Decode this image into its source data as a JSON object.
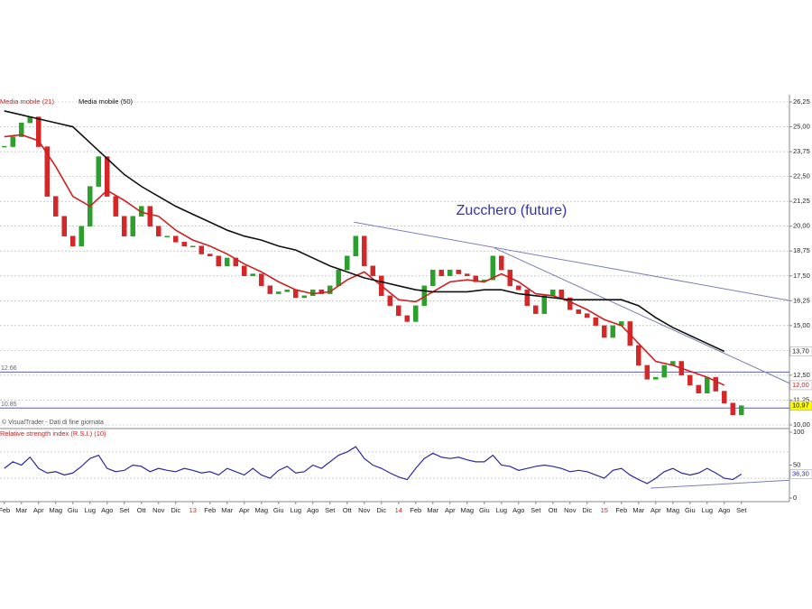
{
  "chart_data": [
    {
      "type": "candlestick",
      "title": "Zucchero (future)",
      "source": "© VisualTrader - Dati di fine giornata",
      "xlim": [
        -0.25,
        45.8
      ],
      "ylim": [
        10,
        26.25
      ],
      "yticks": [
        {
          "value": 10,
          "label": "10,00"
        },
        {
          "value": 11.25,
          "label": "11,25"
        },
        {
          "value": 12.5,
          "label": "12,50"
        },
        {
          "value": 13.75,
          "label": "13,75"
        },
        {
          "value": 15,
          "label": "15,00"
        },
        {
          "value": 16.25,
          "label": "16,25"
        },
        {
          "value": 17.5,
          "label": "17,50"
        },
        {
          "value": 18.75,
          "label": "18,75"
        },
        {
          "value": 20,
          "label": "20,00"
        },
        {
          "value": 21.25,
          "label": "21,25"
        },
        {
          "value": 22.5,
          "label": "22,50"
        },
        {
          "value": 23.75,
          "label": "23,75"
        },
        {
          "value": 25,
          "label": "25,00"
        },
        {
          "value": 26.25,
          "label": "26,25"
        }
      ],
      "grid": true,
      "x": [
        0,
        0.5,
        1,
        1.5,
        2,
        2.5,
        3,
        3.5,
        4,
        4.5,
        5,
        5.5,
        6,
        6.5,
        7,
        7.5,
        8,
        8.5,
        9,
        9.5,
        10,
        10.5,
        11,
        11.5,
        12,
        12.5,
        13,
        13.5,
        14,
        14.5,
        15,
        15.5,
        16,
        16.5,
        17,
        17.5,
        18,
        18.5,
        19,
        19.5,
        20,
        20.5,
        21,
        21.5,
        22,
        22.5,
        23,
        23.5,
        24,
        24.5,
        25,
        25.5,
        26,
        26.5,
        27,
        27.5,
        28,
        28.5,
        29,
        29.5,
        30,
        30.5,
        31,
        31.5,
        32,
        32.5,
        33,
        33.5,
        34,
        34.5,
        35,
        35.5,
        36,
        36.5,
        37,
        37.5,
        38,
        38.5,
        39,
        39.5,
        40,
        40.5,
        41,
        41.5,
        42,
        42.5,
        43
      ],
      "values": [
        24.0,
        24.5,
        25.2,
        25.5,
        24.0,
        21.5,
        20.5,
        19.5,
        19.0,
        20.0,
        22.0,
        23.5,
        21.5,
        20.5,
        19.5,
        20.5,
        21.0,
        20.0,
        19.5,
        19.5,
        19.2,
        19.0,
        19.0,
        18.6,
        18.5,
        18.0,
        18.4,
        18.0,
        17.5,
        17.6,
        17.0,
        16.6,
        16.7,
        16.8,
        16.4,
        16.5,
        16.8,
        16.6,
        17.0,
        17.8,
        18.5,
        19.5,
        18.0,
        17.5,
        16.5,
        16.0,
        15.5,
        15.2,
        16.0,
        17.0,
        17.8,
        17.5,
        17.8,
        17.6,
        17.5,
        17.2,
        17.3,
        18.5,
        17.8,
        17.0,
        16.8,
        16.0,
        15.6,
        16.5,
        16.8,
        16.4,
        15.8,
        15.6,
        15.4,
        15.0,
        14.4,
        15.0,
        15.2,
        14.0,
        13.0,
        12.3,
        12.4,
        13.0,
        13.2,
        12.5,
        12.0,
        11.6,
        12.4,
        11.7,
        11.1,
        10.5,
        10.97
      ],
      "up_color": "#2ca02c",
      "down_color": "#d62728",
      "last_label": "10,97",
      "last_label_bg": "#ffff00",
      "series": [
        {
          "name": "Media mobile (21)",
          "color": "#cc2222",
          "last_label": "12,00",
          "x": [
            0,
            1,
            2,
            3,
            4,
            5,
            6,
            7,
            8,
            9,
            10,
            11,
            12,
            13,
            14,
            15,
            16,
            17,
            18,
            19,
            20,
            21,
            22,
            23,
            24,
            25,
            26,
            27,
            28,
            29,
            30,
            31,
            32,
            33,
            34,
            35,
            36,
            37,
            38,
            39,
            40,
            41,
            42
          ],
          "values": [
            24.5,
            24.6,
            24.3,
            23.0,
            21.5,
            21.0,
            21.8,
            21.3,
            20.7,
            20.5,
            19.8,
            19.3,
            19.0,
            18.6,
            18.1,
            17.7,
            17.2,
            16.8,
            16.6,
            16.7,
            17.3,
            17.7,
            17.0,
            16.3,
            16.2,
            16.7,
            17.2,
            17.3,
            17.2,
            17.6,
            17.2,
            16.6,
            16.5,
            16.2,
            15.8,
            15.3,
            15.0,
            14.1,
            13.2,
            13.0,
            12.7,
            12.4,
            12.0
          ]
        },
        {
          "name": "Media mobile (50)",
          "color": "#111111",
          "last_label": "13,70",
          "x": [
            0,
            1,
            2,
            3,
            4,
            5,
            6,
            7,
            8,
            9,
            10,
            11,
            12,
            13,
            14,
            15,
            16,
            17,
            18,
            19,
            20,
            21,
            22,
            23,
            24,
            25,
            26,
            27,
            28,
            29,
            30,
            31,
            32,
            33,
            34,
            35,
            36,
            37,
            38,
            39,
            40,
            41,
            42
          ],
          "values": [
            25.8,
            25.6,
            25.4,
            25.2,
            25.0,
            24.2,
            23.4,
            22.6,
            22.0,
            21.5,
            21.0,
            20.6,
            20.2,
            19.8,
            19.5,
            19.3,
            19.0,
            18.8,
            18.4,
            18.0,
            17.7,
            17.4,
            17.2,
            17.0,
            16.8,
            16.7,
            16.7,
            16.7,
            16.8,
            16.8,
            16.6,
            16.5,
            16.4,
            16.3,
            16.3,
            16.3,
            16.3,
            16.0,
            15.4,
            14.9,
            14.5,
            14.1,
            13.7
          ]
        }
      ],
      "levels": [
        12.66,
        10.85
      ],
      "level_color": "#5a5fa8",
      "trendlines": [
        {
          "x": [
            20.4,
            45.8
          ],
          "y": [
            20.2,
            16.26
          ]
        },
        {
          "x": [
            28.6,
            45.8
          ],
          "y": [
            18.9,
            12.1
          ]
        }
      ],
      "trend_color": "#7b7fb8"
    },
    {
      "type": "line",
      "title": "Relative strength index (R.S.I.) (10)",
      "xlim": [
        -0.25,
        45.8
      ],
      "ylim": [
        0,
        100
      ],
      "yticks": [
        0,
        50,
        100
      ],
      "levels": [
        70,
        30
      ],
      "xticks": [
        {
          "value": 0,
          "label": "Feb"
        },
        {
          "value": 1,
          "label": "Mar"
        },
        {
          "value": 2,
          "label": "Apr"
        },
        {
          "value": 3,
          "label": "Mag"
        },
        {
          "value": 4,
          "label": "Giu"
        },
        {
          "value": 5,
          "label": "Lug"
        },
        {
          "value": 6,
          "label": "Ago"
        },
        {
          "value": 7,
          "label": "Set"
        },
        {
          "value": 8,
          "label": "Ott"
        },
        {
          "value": 9,
          "label": "Nov"
        },
        {
          "value": 10,
          "label": "Dic"
        },
        {
          "value": 11,
          "label": "13"
        },
        {
          "value": 12,
          "label": "Feb"
        },
        {
          "value": 13,
          "label": "Mar"
        },
        {
          "value": 14,
          "label": "Apr"
        },
        {
          "value": 15,
          "label": "Mag"
        },
        {
          "value": 16,
          "label": "Giu"
        },
        {
          "value": 17,
          "label": "Lug"
        },
        {
          "value": 18,
          "label": "Ago"
        },
        {
          "value": 19,
          "label": "Set"
        },
        {
          "value": 20,
          "label": "Ott"
        },
        {
          "value": 21,
          "label": "Nov"
        },
        {
          "value": 22,
          "label": "Dic"
        },
        {
          "value": 23,
          "label": "14"
        },
        {
          "value": 24,
          "label": "Feb"
        },
        {
          "value": 25,
          "label": "Mar"
        },
        {
          "value": 26,
          "label": "Apr"
        },
        {
          "value": 27,
          "label": "Mag"
        },
        {
          "value": 28,
          "label": "Giu"
        },
        {
          "value": 29,
          "label": "Lug"
        },
        {
          "value": 30,
          "label": "Ago"
        },
        {
          "value": 31,
          "label": "Set"
        },
        {
          "value": 32,
          "label": "Ott"
        },
        {
          "value": 33,
          "label": "Nov"
        },
        {
          "value": 34,
          "label": "Dic"
        },
        {
          "value": 35,
          "label": "15"
        },
        {
          "value": 36,
          "label": "Feb"
        },
        {
          "value": 37,
          "label": "Mar"
        },
        {
          "value": 38,
          "label": "Apr"
        },
        {
          "value": 39,
          "label": "Mag"
        },
        {
          "value": 40,
          "label": "Giu"
        },
        {
          "value": 41,
          "label": "Lug"
        },
        {
          "value": 42,
          "label": "Ago"
        },
        {
          "value": 43,
          "label": "Set"
        }
      ],
      "year_color": "#cc2222",
      "series": [
        {
          "color": "#2a2aa0",
          "last_label": "36,30",
          "x": [
            0,
            0.5,
            1,
            1.5,
            2,
            2.5,
            3,
            3.5,
            4,
            4.5,
            5,
            5.5,
            6,
            6.5,
            7,
            7.5,
            8,
            8.5,
            9,
            9.5,
            10,
            10.5,
            11,
            11.5,
            12,
            12.5,
            13,
            13.5,
            14,
            14.5,
            15,
            15.5,
            16,
            16.5,
            17,
            17.5,
            18,
            18.5,
            19,
            19.5,
            20,
            20.5,
            21,
            21.5,
            22,
            22.5,
            23,
            23.5,
            24,
            24.5,
            25,
            25.5,
            26,
            26.5,
            27,
            27.5,
            28,
            28.5,
            29,
            29.5,
            30,
            30.5,
            31,
            31.5,
            32,
            32.5,
            33,
            33.5,
            34,
            34.5,
            35,
            35.5,
            36,
            36.5,
            37,
            37.5,
            38,
            38.5,
            39,
            39.5,
            40,
            40.5,
            41,
            41.5,
            42,
            42.5,
            43
          ],
          "values": [
            45,
            55,
            50,
            62,
            45,
            38,
            40,
            35,
            38,
            48,
            60,
            65,
            45,
            40,
            42,
            50,
            48,
            40,
            45,
            42,
            40,
            45,
            42,
            38,
            40,
            35,
            45,
            40,
            35,
            45,
            35,
            30,
            42,
            48,
            38,
            40,
            50,
            45,
            55,
            65,
            70,
            78,
            60,
            50,
            45,
            38,
            32,
            28,
            45,
            60,
            68,
            62,
            60,
            62,
            58,
            55,
            55,
            65,
            50,
            48,
            42,
            45,
            48,
            50,
            48,
            45,
            40,
            42,
            40,
            35,
            30,
            42,
            45,
            35,
            28,
            22,
            30,
            40,
            45,
            38,
            35,
            38,
            45,
            38,
            30,
            28,
            36.3
          ]
        }
      ],
      "trendlines": [
        {
          "x": [
            37.7,
            45.8
          ],
          "y": [
            15,
            27
          ]
        }
      ],
      "trend_color": "#7b7fb8"
    }
  ]
}
